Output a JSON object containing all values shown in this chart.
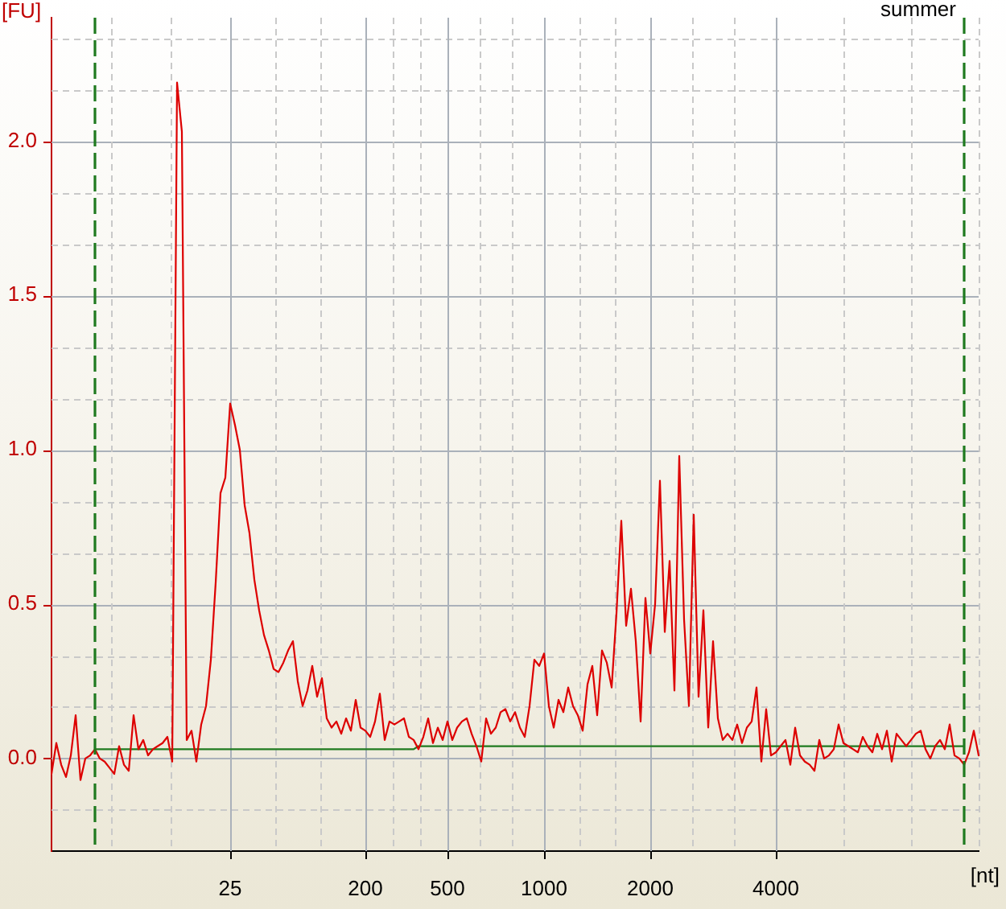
{
  "chart_data": {
    "type": "line",
    "title": "summer",
    "xlabel": "[nt]",
    "ylabel": "[FU]",
    "categories": [
      null,
      null,
      null,
      null,
      null,
      null,
      null,
      null,
      null,
      null,
      null,
      null,
      null,
      null,
      null,
      null,
      null,
      null,
      null,
      null,
      null,
      null,
      null,
      null,
      null,
      null,
      null,
      null,
      null,
      null,
      null,
      null,
      null,
      null,
      null,
      null,
      null,
      "25",
      null,
      null,
      null,
      null,
      null,
      null,
      null,
      null,
      null,
      null,
      null,
      null,
      null,
      null,
      null,
      null,
      null,
      null,
      null,
      null,
      null,
      null,
      null,
      null,
      null,
      null,
      null,
      "200",
      null,
      null,
      null,
      null,
      null,
      null,
      null,
      null,
      null,
      null,
      null,
      null,
      null,
      null,
      null,
      null,
      "500",
      null,
      null,
      null,
      null,
      null,
      null,
      null,
      null,
      null,
      null,
      null,
      null,
      null,
      null,
      null,
      null,
      null,
      null,
      null,
      "1000",
      null,
      null,
      null,
      null,
      null,
      null,
      null,
      null,
      null,
      null,
      null,
      null,
      null,
      null,
      null,
      null,
      null,
      null,
      null,
      null,
      null,
      "2000",
      null,
      null,
      null,
      null,
      null,
      null,
      null,
      null,
      null,
      null,
      null,
      null,
      null,
      null,
      null,
      null,
      null,
      null,
      null,
      null,
      null,
      null,
      null,
      null,
      null,
      "4000",
      null,
      null,
      null,
      null,
      null,
      null,
      null,
      null,
      null,
      null,
      null,
      null,
      null,
      null,
      null,
      null,
      null,
      null,
      null,
      null,
      null,
      null,
      null,
      null,
      null,
      null,
      null,
      null,
      null,
      null,
      null,
      null,
      null,
      null,
      null,
      null,
      null,
      null,
      null,
      null,
      null,
      null
    ],
    "series": [
      {
        "color": "#dd0000",
        "values": [
          -0.05,
          0.05,
          -0.02,
          -0.06,
          0.01,
          0.14,
          -0.07,
          0,
          0.01,
          0.03,
          0,
          -0.01,
          -0.03,
          -0.05,
          0.04,
          -0.02,
          -0.04,
          0.14,
          0.03,
          0.06,
          0.01,
          0.03,
          0.04,
          0.05,
          0.07,
          -0.01,
          2.19,
          2.03,
          0.06,
          0.09,
          -0.01,
          0.11,
          0.17,
          0.32,
          0.57,
          0.86,
          0.91,
          1.15,
          1.08,
          1.0,
          0.82,
          0.73,
          0.58,
          0.48,
          0.4,
          0.35,
          0.29,
          0.28,
          0.31,
          0.35,
          0.38,
          0.25,
          0.17,
          0.22,
          0.3,
          0.2,
          0.26,
          0.13,
          0.1,
          0.12,
          0.08,
          0.13,
          0.09,
          0.19,
          0.1,
          0.09,
          0.07,
          0.12,
          0.21,
          0.06,
          0.12,
          0.11,
          0.12,
          0.13,
          0.07,
          0.06,
          0.03,
          0.07,
          0.13,
          0.05,
          0.1,
          0.06,
          0.12,
          0.06,
          0.1,
          0.12,
          0.13,
          0.08,
          0.04,
          -0.01,
          0.13,
          0.08,
          0.1,
          0.15,
          0.16,
          0.12,
          0.15,
          0.1,
          0.07,
          0.17,
          0.32,
          0.3,
          0.34,
          0.17,
          0.1,
          0.19,
          0.15,
          0.23,
          0.17,
          0.14,
          0.09,
          0.24,
          0.3,
          0.14,
          0.35,
          0.31,
          0.23,
          0.47,
          0.77,
          0.43,
          0.55,
          0.38,
          0.12,
          0.52,
          0.34,
          0.5,
          0.9,
          0.41,
          0.64,
          0.22,
          0.98,
          0.45,
          0.17,
          0.79,
          0.2,
          0.48,
          0.1,
          0.38,
          0.13,
          0.06,
          0.08,
          0.06,
          0.11,
          0.05,
          0.1,
          0.12,
          0.23,
          -0.01,
          0.16,
          0.01,
          0.02,
          0.04,
          0.06,
          -0.02,
          0.1,
          0.01,
          -0.01,
          -0.02,
          -0.04,
          0.06,
          0,
          0.01,
          0.03,
          0.11,
          0.05,
          0.04,
          0.03,
          0.02,
          0.07,
          0.04,
          0.02,
          0.08,
          0.03,
          0.09,
          -0.01,
          0.08,
          0.06,
          0.04,
          0.06,
          0.08,
          0.09,
          0.03,
          0,
          0.04,
          0.06,
          0.03,
          0.11,
          0.01,
          0,
          -0.02,
          0.02,
          0.09,
          0.01
        ]
      },
      {
        "color": "#1f7a1f",
        "values": [
          null,
          null,
          null,
          null,
          null,
          null,
          null,
          null,
          null,
          0.03,
          0.03,
          0.03,
          0.03,
          0.03,
          0.03,
          0.03,
          0.03,
          0.03,
          0.03,
          0.03,
          0.03,
          0.03,
          0.03,
          0.03,
          0.03,
          0.03,
          0.03,
          0.03,
          0.03,
          0.03,
          0.03,
          0.03,
          0.03,
          0.03,
          0.03,
          0.03,
          0.03,
          0.03,
          0.03,
          0.03,
          0.03,
          0.03,
          0.03,
          0.03,
          0.03,
          0.03,
          0.03,
          0.03,
          0.03,
          0.03,
          0.03,
          0.03,
          0.03,
          0.03,
          0.03,
          0.03,
          0.03,
          0.03,
          0.03,
          0.03,
          0.03,
          0.03,
          0.03,
          0.03,
          0.03,
          0.03,
          0.03,
          0.03,
          0.03,
          0.03,
          0.03,
          0.03,
          0.03,
          0.03,
          0.03,
          0.03,
          0.04,
          0.04,
          0.04,
          0.04,
          0.04,
          0.04,
          0.04,
          0.04,
          0.04,
          0.04,
          0.04,
          0.04,
          0.04,
          0.04,
          0.04,
          0.04,
          0.04,
          0.04,
          0.04,
          0.04,
          0.04,
          0.04,
          0.04,
          0.04,
          0.04,
          0.04,
          0.04,
          0.04,
          0.04,
          0.04,
          0.04,
          0.04,
          0.04,
          0.04,
          0.04,
          0.04,
          0.04,
          0.04,
          0.04,
          0.04,
          0.04,
          0.04,
          0.04,
          0.04,
          0.04,
          0.04,
          0.04,
          0.04,
          0.04,
          0.04,
          0.04,
          0.04,
          0.04,
          0.04,
          0.04,
          0.04,
          0.04,
          0.04,
          0.04,
          0.04,
          0.04,
          0.04,
          0.04,
          0.04,
          0.04,
          0.04,
          0.04,
          0.04,
          0.04,
          0.04,
          0.04,
          0.04,
          0.04,
          0.04,
          0.04,
          0.04,
          0.04,
          0.04,
          0.04,
          0.04,
          0.04,
          0.04,
          0.04,
          0.04,
          0.04,
          0.04,
          0.04,
          0.04,
          0.04,
          0.04,
          0.04,
          0.04,
          0.04,
          0.04,
          0.04,
          0.04,
          0.04,
          0.04,
          0.04,
          0.04,
          0.04,
          0.04,
          0.04,
          0.04,
          0.04,
          0.04,
          0.04,
          0.04,
          0.04,
          0.04,
          0.04,
          0.04,
          0.04,
          0.04,
          null,
          null,
          null
        ]
      }
    ],
    "ylim": [
      -0.3,
      2.4
    ],
    "yticks": [
      {
        "value": -0.1667,
        "label": null
      },
      {
        "value": 0,
        "label": "0.0"
      },
      {
        "value": 0.1667,
        "label": null
      },
      {
        "value": 0.3333,
        "label": null
      },
      0.5,
      {
        "value": 0.6667,
        "label": null
      },
      {
        "value": 0.8333,
        "label": null
      },
      {
        "value": 1,
        "label": "1.0"
      },
      {
        "value": 1.1667,
        "label": null
      },
      {
        "value": 1.3333,
        "label": null
      },
      1.5,
      {
        "value": 1.6667,
        "label": null
      },
      {
        "value": 1.8333,
        "label": null
      },
      {
        "value": 2,
        "label": "2.0"
      },
      {
        "value": 2.1667,
        "label": null
      },
      {
        "value": 2.3333,
        "label": null
      }
    ],
    "grid": true,
    "marker": "none",
    "line_style": "solid"
  }
}
